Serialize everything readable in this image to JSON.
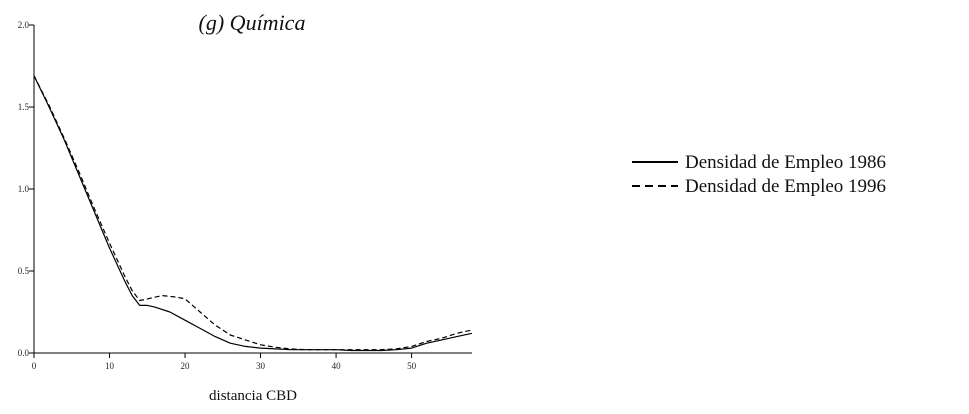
{
  "chart_data": {
    "type": "line",
    "title": "(g) Química",
    "xlabel": "distancia CBD",
    "ylabel": "",
    "xlim": [
      0,
      58
    ],
    "ylim": [
      0,
      2.0
    ],
    "x_ticks": [
      0,
      10,
      20,
      30,
      40,
      50
    ],
    "y_ticks": [
      0.0,
      0.5,
      1.0,
      1.5,
      2.0
    ],
    "x_tick_labels": [
      "0",
      "10",
      "20",
      "30",
      "40",
      "50"
    ],
    "y_tick_labels": [
      "0.0",
      "0.5",
      "1.0",
      "1.5",
      "2.0"
    ],
    "grid": false,
    "legend_position": "right",
    "series": [
      {
        "name": "Densidad de Empleo 1986",
        "style": "solid",
        "color": "#000000",
        "x": [
          0,
          2,
          4,
          6,
          8,
          10,
          12,
          13,
          14,
          15,
          16,
          18,
          20,
          22,
          24,
          26,
          28,
          30,
          32,
          34,
          36,
          38,
          40,
          42,
          44,
          46,
          48,
          50,
          52,
          54,
          56,
          58
        ],
        "y": [
          1.69,
          1.5,
          1.3,
          1.08,
          0.86,
          0.64,
          0.44,
          0.35,
          0.29,
          0.29,
          0.28,
          0.25,
          0.2,
          0.15,
          0.1,
          0.06,
          0.04,
          0.03,
          0.025,
          0.02,
          0.02,
          0.02,
          0.02,
          0.015,
          0.015,
          0.015,
          0.02,
          0.03,
          0.06,
          0.08,
          0.1,
          0.12
        ]
      },
      {
        "name": "Densidad de Empleo 1996",
        "style": "dashed",
        "color": "#000000",
        "x": [
          0,
          2,
          4,
          6,
          8,
          10,
          12,
          13,
          14,
          15,
          16,
          17,
          18,
          19,
          20,
          22,
          24,
          26,
          28,
          30,
          32,
          34,
          36,
          38,
          40,
          42,
          44,
          46,
          48,
          50,
          52,
          54,
          56,
          58
        ],
        "y": [
          1.69,
          1.51,
          1.31,
          1.1,
          0.88,
          0.67,
          0.47,
          0.38,
          0.32,
          0.33,
          0.34,
          0.35,
          0.345,
          0.34,
          0.33,
          0.25,
          0.17,
          0.11,
          0.08,
          0.05,
          0.035,
          0.025,
          0.02,
          0.02,
          0.02,
          0.02,
          0.02,
          0.02,
          0.025,
          0.04,
          0.07,
          0.09,
          0.12,
          0.14
        ]
      }
    ]
  }
}
